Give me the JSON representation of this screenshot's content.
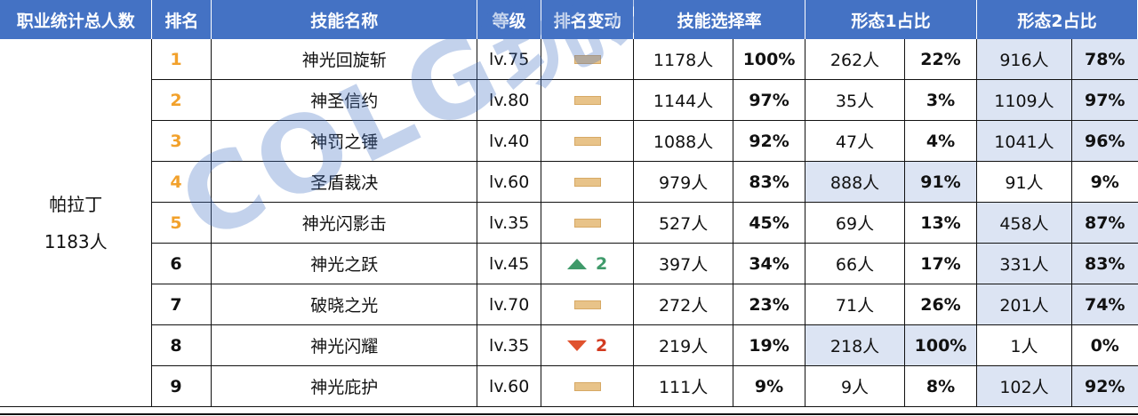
{
  "headers": {
    "profession_count": "职业统计总人数",
    "rank": "排名",
    "skill_name": "技能名称",
    "level": "等级",
    "rank_change": "排名变动",
    "skill_rate": "技能选择率",
    "form1": "形态1占比",
    "form2": "形态2占比"
  },
  "profession": {
    "name": "帕拉丁",
    "total": "1183人"
  },
  "rows": [
    {
      "rank": "1",
      "name": "神光回旋斩",
      "level": "lv.75",
      "change": "flat",
      "change_num": "",
      "sel": "1178人",
      "sel_pct": "100%",
      "f1": "262人",
      "f1_pct": "22%",
      "f2": "916人",
      "f2_pct": "78%"
    },
    {
      "rank": "2",
      "name": "神圣信约",
      "level": "lv.80",
      "change": "flat",
      "change_num": "",
      "sel": "1144人",
      "sel_pct": "97%",
      "f1": "35人",
      "f1_pct": "3%",
      "f2": "1109人",
      "f2_pct": "97%"
    },
    {
      "rank": "3",
      "name": "神罚之锤",
      "level": "lv.40",
      "change": "flat",
      "change_num": "",
      "sel": "1088人",
      "sel_pct": "92%",
      "f1": "47人",
      "f1_pct": "4%",
      "f2": "1041人",
      "f2_pct": "96%"
    },
    {
      "rank": "4",
      "name": "圣盾裁决",
      "level": "lv.60",
      "change": "flat",
      "change_num": "",
      "sel": "979人",
      "sel_pct": "83%",
      "f1": "888人",
      "f1_pct": "91%",
      "f2": "91人",
      "f2_pct": "9%"
    },
    {
      "rank": "5",
      "name": "神光闪影击",
      "level": "lv.35",
      "change": "flat",
      "change_num": "",
      "sel": "527人",
      "sel_pct": "45%",
      "f1": "69人",
      "f1_pct": "13%",
      "f2": "458人",
      "f2_pct": "87%"
    },
    {
      "rank": "6",
      "name": "神光之跃",
      "level": "lv.45",
      "change": "up",
      "change_num": "2",
      "sel": "397人",
      "sel_pct": "34%",
      "f1": "66人",
      "f1_pct": "17%",
      "f2": "331人",
      "f2_pct": "83%"
    },
    {
      "rank": "7",
      "name": "破晓之光",
      "level": "lv.70",
      "change": "flat",
      "change_num": "",
      "sel": "272人",
      "sel_pct": "23%",
      "f1": "71人",
      "f1_pct": "26%",
      "f2": "201人",
      "f2_pct": "74%"
    },
    {
      "rank": "8",
      "name": "神光闪耀",
      "level": "lv.35",
      "change": "down",
      "change_num": "2",
      "sel": "219人",
      "sel_pct": "19%",
      "f1": "218人",
      "f1_pct": "100%",
      "f2": "1人",
      "f2_pct": "0%"
    },
    {
      "rank": "9",
      "name": "神光庇护",
      "level": "lv.60",
      "change": "flat",
      "change_num": "",
      "sel": "111人",
      "sel_pct": "9%",
      "f1": "9人",
      "f1_pct": "8%",
      "f2": "102人",
      "f2_pct": "92%"
    }
  ],
  "watermark": "COLG玩家社区",
  "colors": {
    "header_bg": "#4472c4",
    "top_rank": "#f2a12b",
    "shade": "#dce4f3",
    "up": "#3f9a6a",
    "down": "#e0522e"
  }
}
